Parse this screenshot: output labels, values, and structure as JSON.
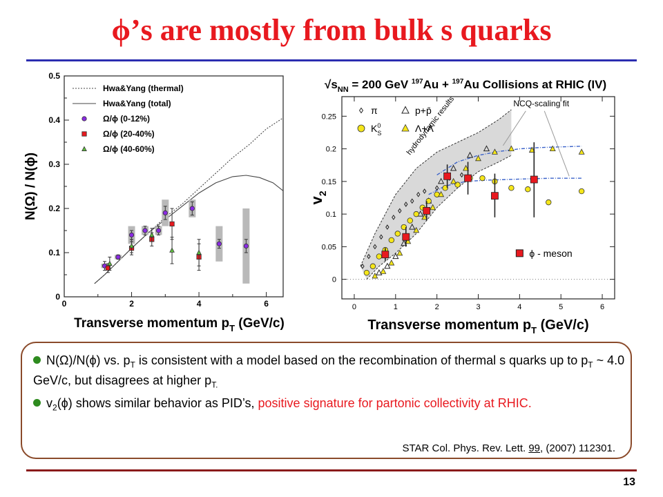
{
  "slide": {
    "title": "ϕ’s are mostly from bulk s quarks",
    "page_number": "13"
  },
  "summary": {
    "bullet1": {
      "pre": "N(Ω)/N(ϕ) vs. p",
      "sub1": "T",
      "mid": " is consistent with a model based on the recombination of thermal s quarks up to p",
      "sub2": "T",
      "post": " ~ 4.0 GeV/c, but disagrees at higher p",
      "sub3": "T.",
      "end": ""
    },
    "bullet2": {
      "pre": "v",
      "sub1": "2",
      "mid": "(ϕ) shows similar behavior as PID’s, ",
      "red": "positive signature for partonic collectivity at RHIC."
    },
    "citation": {
      "pre": "STAR Col. Phys. Rev. Lett. ",
      "volume": "99",
      "post": ", (2007) 112301."
    }
  },
  "colors": {
    "title": "#e8191f",
    "title_rule": "#2b2db0",
    "bottom_rule": "#8a1a1a",
    "box_border": "#8a4a2a",
    "bullet": "#2e8b1f",
    "purple": "#8a2be2",
    "red": "#e8191f",
    "green": "#5fbf3f",
    "yellow": "#f5e61a"
  },
  "chart_data": [
    {
      "type": "scatter",
      "xlabel": "Transverse momentum p",
      "xlabel_sub": "T",
      "xlabel_unit": " (GeV/c)",
      "ylabel": "N(Ω) / N(ϕ)",
      "xlim": [
        0,
        6.5
      ],
      "ylim": [
        0,
        0.5
      ],
      "x_ticks": [
        "0",
        "2",
        "4",
        "6"
      ],
      "y_ticks": [
        "0",
        "0.1",
        "0.2",
        "0.3",
        "0.4",
        "0.5"
      ],
      "legend": {
        "position": "top-left",
        "entries": [
          "Hwa&Yang (thermal)",
          "Hwa&Yang (total)",
          "Ω/ϕ (0-12%)",
          "Ω/ϕ (20-40%)",
          "Ω/ϕ (40-60%)"
        ]
      },
      "curves": [
        {
          "name": "Hwa&Yang (thermal)",
          "style": "dotted",
          "x": [
            0.9,
            1.2,
            1.6,
            2.0,
            2.5,
            3.0,
            3.5,
            4.0,
            4.5,
            5.0,
            5.5,
            6.0,
            6.5
          ],
          "y": [
            0.03,
            0.05,
            0.08,
            0.11,
            0.145,
            0.18,
            0.21,
            0.245,
            0.28,
            0.315,
            0.345,
            0.38,
            0.405
          ]
        },
        {
          "name": "Hwa&Yang (total)",
          "style": "solid",
          "x": [
            0.9,
            1.2,
            1.6,
            2.0,
            2.5,
            3.0,
            3.5,
            4.0,
            4.5,
            5.0,
            5.4,
            5.8,
            6.2,
            6.5
          ],
          "y": [
            0.03,
            0.05,
            0.08,
            0.11,
            0.145,
            0.175,
            0.205,
            0.235,
            0.258,
            0.272,
            0.275,
            0.27,
            0.258,
            0.24
          ]
        }
      ],
      "series": [
        {
          "name": "Ω/ϕ (0-12%)",
          "marker": "circle",
          "x": [
            1.2,
            1.6,
            2.0,
            2.4,
            2.8,
            3.0,
            3.8,
            4.6,
            5.4
          ],
          "y": [
            0.07,
            0.09,
            0.14,
            0.15,
            0.15,
            0.19,
            0.2,
            0.12,
            0.115
          ],
          "err_low": [
            0.06,
            0.085,
            0.13,
            0.14,
            0.14,
            0.175,
            0.185,
            0.11,
            0.1
          ],
          "err_high": [
            0.08,
            0.095,
            0.15,
            0.16,
            0.16,
            0.205,
            0.215,
            0.13,
            0.13
          ],
          "sys_low": [
            0.065,
            0.085,
            0.12,
            0.14,
            0.14,
            0.16,
            0.18,
            0.08,
            0.03
          ],
          "sys_high": [
            0.075,
            0.095,
            0.16,
            0.16,
            0.16,
            0.22,
            0.22,
            0.16,
            0.2
          ]
        },
        {
          "name": "Ω/ϕ (20-40%)",
          "marker": "square",
          "x": [
            1.3,
            2.0,
            2.6,
            3.2,
            4.0
          ],
          "y": [
            0.065,
            0.11,
            0.13,
            0.165,
            0.09
          ],
          "err_low": [
            0.055,
            0.095,
            0.115,
            0.13,
            0.06
          ],
          "err_high": [
            0.075,
            0.125,
            0.145,
            0.2,
            0.12
          ]
        },
        {
          "name": "Ω/ϕ (40-60%)",
          "marker": "triangle",
          "x": [
            1.35,
            2.0,
            2.6,
            3.2,
            4.0
          ],
          "y": [
            0.075,
            0.115,
            0.14,
            0.105,
            0.1
          ],
          "err_low": [
            0.06,
            0.1,
            0.125,
            0.075,
            0.07
          ],
          "err_high": [
            0.09,
            0.13,
            0.155,
            0.135,
            0.13
          ]
        }
      ]
    },
    {
      "type": "scatter",
      "title": "√s",
      "title_sub": "NN",
      "title_post": " = 200 GeV ",
      "title_sup1": "197",
      "title_mid": "Au + ",
      "title_sup2": "197",
      "title_end": "Au Collisions at RHIC (IV)",
      "xlabel": "Transverse momentum p",
      "xlabel_sub": "T",
      "xlabel_unit": " (GeV/c)",
      "ylabel": "v",
      "ylabel_sub": "2",
      "xlim": [
        -0.3,
        6.3
      ],
      "ylim": [
        -0.03,
        0.28
      ],
      "x_ticks": [
        "0",
        "1",
        "2",
        "3",
        "4",
        "5",
        "6"
      ],
      "y_ticks": [
        "0",
        "0.05",
        "0.1",
        "0.15",
        "0.2",
        "0.25"
      ],
      "annotations": [
        "hydrodynamic results",
        "NCQ-scaling fit"
      ],
      "legend": {
        "position": "top-left",
        "entries": [
          "π",
          "p+p̄",
          "K",
          "Λ+Λ̄",
          "ϕ - meson"
        ],
        "kaon_sup": "0",
        "kaon_sub": "S"
      },
      "band": {
        "upper": {
          "x": [
            0.15,
            0.5,
            1.0,
            1.5,
            2.0,
            2.5,
            3.0,
            3.5,
            3.8
          ],
          "y": [
            0.02,
            0.07,
            0.13,
            0.17,
            0.195,
            0.21,
            0.225,
            0.245,
            0.26
          ]
        },
        "lower": {
          "x": [
            0.3,
            0.6,
            1.0,
            1.5,
            2.0,
            2.5,
            3.0,
            3.5,
            3.8
          ],
          "y": [
            0.0,
            0.02,
            0.04,
            0.07,
            0.11,
            0.14,
            0.165,
            0.18,
            0.19
          ]
        }
      },
      "fits": [
        {
          "x": [
            2.0,
            2.5,
            3.0,
            3.5,
            4.0,
            4.5,
            5.0,
            5.5
          ],
          "y": [
            0.16,
            0.18,
            0.19,
            0.196,
            0.2,
            0.202,
            0.203,
            0.204
          ]
        },
        {
          "x": [
            1.8,
            2.2,
            2.7,
            3.2,
            3.7,
            4.2,
            4.8,
            5.5
          ],
          "y": [
            0.13,
            0.143,
            0.15,
            0.152,
            0.153,
            0.154,
            0.155,
            0.155
          ]
        }
      ],
      "series": [
        {
          "name": "π",
          "marker": "diamond",
          "x": [
            0.2,
            0.35,
            0.5,
            0.65,
            0.8,
            0.95,
            1.1,
            1.25,
            1.4,
            1.55,
            1.7,
            2.0,
            2.3,
            2.6
          ],
          "y": [
            0.02,
            0.035,
            0.05,
            0.065,
            0.08,
            0.095,
            0.105,
            0.115,
            0.12,
            0.13,
            0.135,
            0.14,
            0.155,
            0.16
          ]
        },
        {
          "name": "p+p̄",
          "marker": "triangle-open",
          "x": [
            0.6,
            0.8,
            1.0,
            1.2,
            1.4,
            1.6,
            1.8,
            2.1,
            2.4,
            2.8,
            3.2
          ],
          "y": [
            0.01,
            0.02,
            0.035,
            0.055,
            0.08,
            0.1,
            0.12,
            0.15,
            0.17,
            0.19,
            0.2
          ]
        },
        {
          "name": "K",
          "marker": "circle",
          "x": [
            0.3,
            0.45,
            0.6,
            0.75,
            0.9,
            1.05,
            1.2,
            1.35,
            1.5,
            1.65,
            1.8,
            2.0,
            2.2,
            2.5,
            2.8,
            3.1,
            3.4,
            3.8,
            4.2,
            4.7,
            5.5
          ],
          "y": [
            0.01,
            0.02,
            0.035,
            0.045,
            0.06,
            0.07,
            0.08,
            0.09,
            0.1,
            0.11,
            0.12,
            0.13,
            0.14,
            0.145,
            0.155,
            0.155,
            0.15,
            0.14,
            0.138,
            0.118,
            0.135
          ]
        },
        {
          "name": "Λ+Λ̄",
          "marker": "triangle",
          "x": [
            0.5,
            0.7,
            0.9,
            1.1,
            1.3,
            1.5,
            1.7,
            1.9,
            2.1,
            2.4,
            2.7,
            3.0,
            3.4,
            3.8,
            4.3,
            4.8,
            5.5
          ],
          "y": [
            0.005,
            0.012,
            0.025,
            0.04,
            0.058,
            0.075,
            0.095,
            0.11,
            0.13,
            0.15,
            0.17,
            0.185,
            0.195,
            0.2,
            0.198,
            0.2,
            0.195
          ]
        },
        {
          "name": "ϕ - meson",
          "marker": "square",
          "x": [
            0.75,
            1.25,
            1.75,
            2.25,
            2.75,
            3.4,
            4.35
          ],
          "y": [
            0.038,
            0.065,
            0.105,
            0.158,
            0.155,
            0.128,
            0.153
          ],
          "err_low": [
            0.028,
            0.05,
            0.09,
            0.14,
            0.13,
            0.095,
            0.095
          ],
          "err_high": [
            0.048,
            0.08,
            0.12,
            0.176,
            0.18,
            0.162,
            0.21
          ]
        }
      ]
    }
  ]
}
